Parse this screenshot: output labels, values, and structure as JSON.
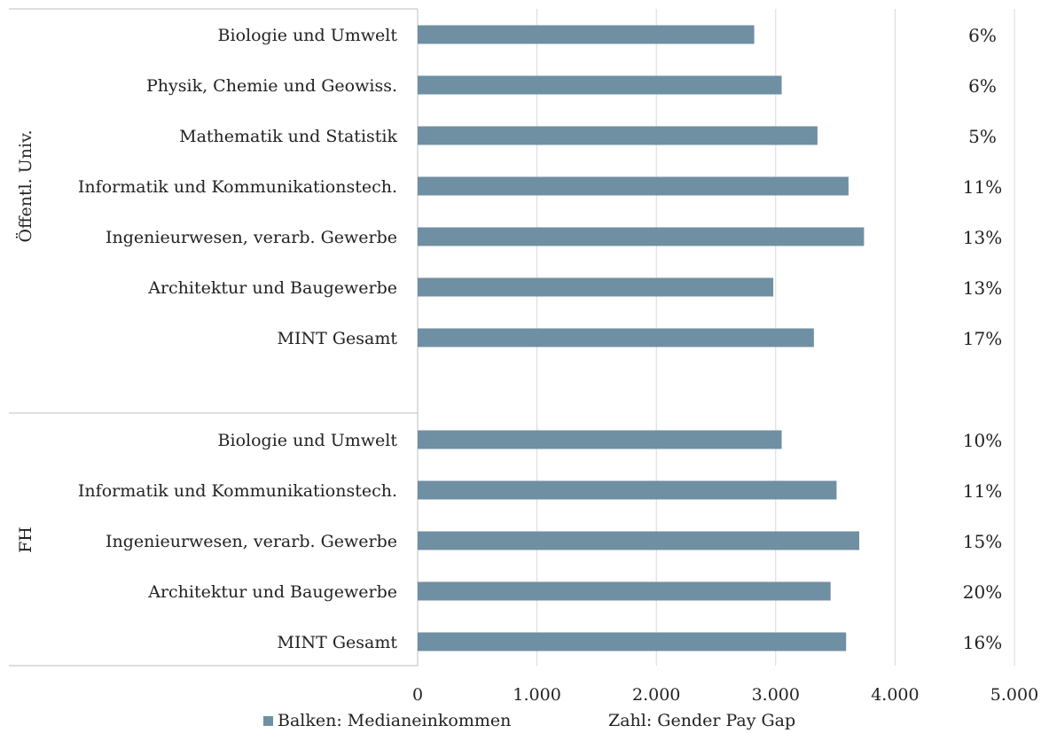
{
  "chart_data": {
    "type": "bar",
    "orientation": "horizontal",
    "xlim": [
      0,
      5000
    ],
    "x_ticks": [
      "0",
      "1.000",
      "2.000",
      "3.000",
      "4.000",
      "5.000"
    ],
    "x_tick_values": [
      0,
      1000,
      2000,
      3000,
      4000,
      5000
    ],
    "grid": "vertical",
    "bar_color": "#6f8fa3",
    "groups": [
      {
        "name": "Öffentl. Univ.",
        "items": [
          {
            "category": "Biologie und Umwelt",
            "value": 2820,
            "gap": "6%"
          },
          {
            "category": "Physik, Chemie und Geowiss.",
            "value": 3050,
            "gap": "6%"
          },
          {
            "category": "Mathematik und Statistik",
            "value": 3350,
            "gap": "5%"
          },
          {
            "category": "Informatik und Kommunikationstech.",
            "value": 3610,
            "gap": "11%"
          },
          {
            "category": "Ingenieurwesen, verarb. Gewerbe",
            "value": 3740,
            "gap": "13%"
          },
          {
            "category": "Architektur und Baugewerbe",
            "value": 2980,
            "gap": "13%"
          },
          {
            "category": "MINT Gesamt",
            "value": 3320,
            "gap": "17%"
          }
        ]
      },
      {
        "name": "FH",
        "items": [
          {
            "category": "Biologie und Umwelt",
            "value": 3050,
            "gap": "10%"
          },
          {
            "category": "Informatik und Kommunikationstech.",
            "value": 3510,
            "gap": "11%"
          },
          {
            "category": "Ingenieurwesen, verarb. Gewerbe",
            "value": 3700,
            "gap": "15%"
          },
          {
            "category": "Architektur und Baugewerbe",
            "value": 3460,
            "gap": "20%"
          },
          {
            "category": "MINT Gesamt",
            "value": 3590,
            "gap": "16%"
          }
        ]
      }
    ],
    "legend": {
      "position": "bottom",
      "bars_label": "Balken: Medianeinkommen",
      "numbers_label": "Zahl: Gender Pay Gap"
    }
  }
}
